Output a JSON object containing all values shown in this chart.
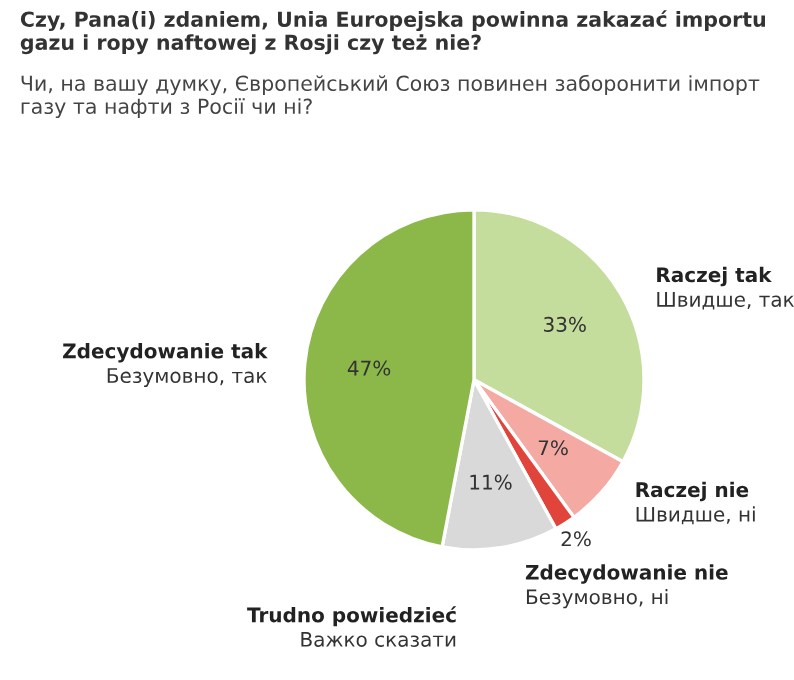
{
  "chart_data": {
    "type": "pie",
    "title": "Czy, Pana(i) zdaniem, Unia Europejska powinna zakazać importu gazu i ropy naftowej z Rosji czy też nie?",
    "subtitle": "Чи, на вашу думку, Європейський Союз повинен заборонити імпорт газу та нафти з Росії чи ні?",
    "categories": [
      "Raczej tak\nШвидше, так",
      "Raczej nie\nШвидше, ні",
      "Zdecydowanie nie\nБезумовно, ні",
      "Trudno powiedzieć\nВажко сказати",
      "Zdecydowanie tak\nБезумовно, так"
    ],
    "values": [
      33,
      7,
      2,
      11,
      47
    ],
    "colors": [
      "#c5dd9c",
      "#f4aaa2",
      "#e0443a",
      "#d9d9d9",
      "#8cb84a"
    ],
    "value_labels": [
      "33%",
      "7%",
      "2%",
      "11%",
      "47%"
    ],
    "legend": false
  }
}
